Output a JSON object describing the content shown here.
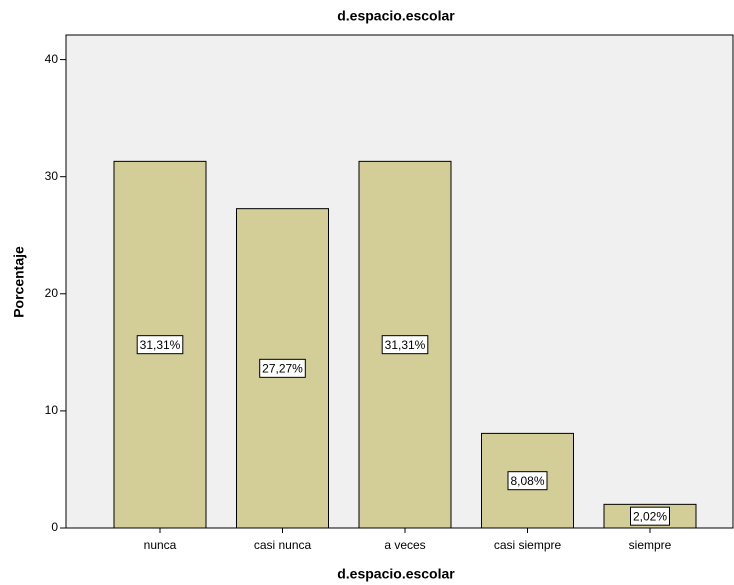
{
  "chart_data": {
    "type": "bar",
    "title": "d.espacio.escolar",
    "x_label": "d.espacio.escolar",
    "y_label": "Porcentaje",
    "categories": [
      "nunca",
      "casi nunca",
      "a veces",
      "casi siempre",
      "siempre"
    ],
    "values": [
      31.31,
      27.27,
      31.31,
      8.08,
      2.02
    ],
    "value_labels": [
      "31,31%",
      "27,27%",
      "31,31%",
      "8,08%",
      "2,02%"
    ],
    "color": "#d3ce97",
    "ylim": [
      0,
      42.1
    ],
    "yticks": [
      0,
      10,
      20,
      30,
      40
    ],
    "grid": false
  }
}
